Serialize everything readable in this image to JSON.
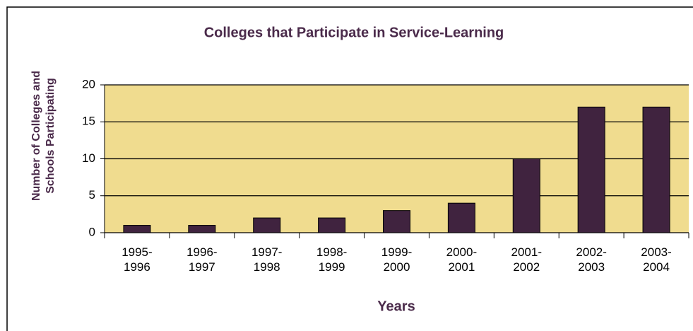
{
  "chart_data": {
    "type": "bar",
    "title": "Colleges that Participate in Service-Learning",
    "x_label": "Years",
    "y_label": "Number of Colleges and Schools Participating",
    "categories": [
      "1995-1996",
      "1996-1997",
      "1997-1998",
      "1998-1999",
      "1999-2000",
      "2000-2001",
      "2001-2002",
      "2002-2003",
      "2003-2004"
    ],
    "values": [
      1,
      1,
      2,
      2,
      3,
      4,
      10,
      17,
      17
    ],
    "color": "#40233f",
    "ylim": [
      0,
      20
    ],
    "yticks": [
      0,
      5,
      10,
      15,
      20
    ],
    "grid": true
  }
}
